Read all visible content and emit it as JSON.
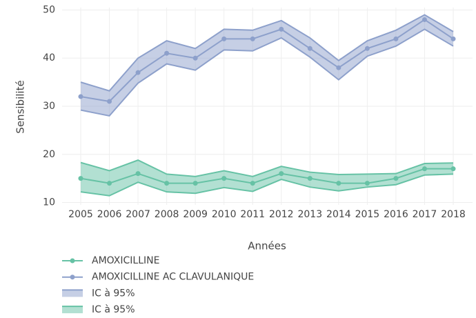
{
  "chart_data": {
    "type": "line",
    "y_label": "Sensibilité",
    "x_label": "Années",
    "categories": [
      "2005",
      "2006",
      "2007",
      "2008",
      "2009",
      "2010",
      "2011",
      "2012",
      "2013",
      "2014",
      "2015",
      "2016",
      "2017",
      "2018"
    ],
    "ylim": [
      9.5,
      50.5
    ],
    "yticks": [
      10,
      20,
      30,
      40,
      50
    ],
    "grid": true,
    "series": [
      {
        "name": "AMOXICILLINE",
        "color": "#66c2a5",
        "values": [
          15,
          14,
          16,
          14,
          14,
          15,
          14,
          16,
          15,
          14,
          14,
          15,
          17,
          17
        ]
      },
      {
        "name": "AMOXICILLINE AC CLAVULANIQUE",
        "color": "#8da0cb",
        "values": [
          32,
          31,
          37,
          41,
          40,
          44,
          44,
          46,
          42,
          38,
          42,
          44,
          48,
          44
        ]
      }
    ],
    "bands": [
      {
        "name": "IC à 95%",
        "color": "#8da0cb",
        "upper": [
          35,
          33.2,
          40,
          43.6,
          42,
          46,
          45.8,
          47.8,
          44.2,
          39.5,
          43.6,
          45.8,
          49,
          45.5
        ],
        "lower": [
          29.2,
          28,
          34.8,
          38.8,
          37.5,
          41.7,
          41.5,
          44.2,
          40.2,
          35.5,
          40.4,
          42.5,
          46,
          42.5
        ]
      },
      {
        "name": "IC à 95%",
        "color": "#66c2a5",
        "upper": [
          18.3,
          16.6,
          18.8,
          15.9,
          15.4,
          16.6,
          15.4,
          17.5,
          16.3,
          15.8,
          15.9,
          16,
          18.1,
          18.2
        ],
        "lower": [
          12.2,
          11.4,
          14.2,
          12.2,
          11.9,
          13.1,
          12.3,
          14.8,
          13.2,
          12.4,
          13.2,
          13.7,
          15.7,
          15.9
        ]
      }
    ]
  }
}
